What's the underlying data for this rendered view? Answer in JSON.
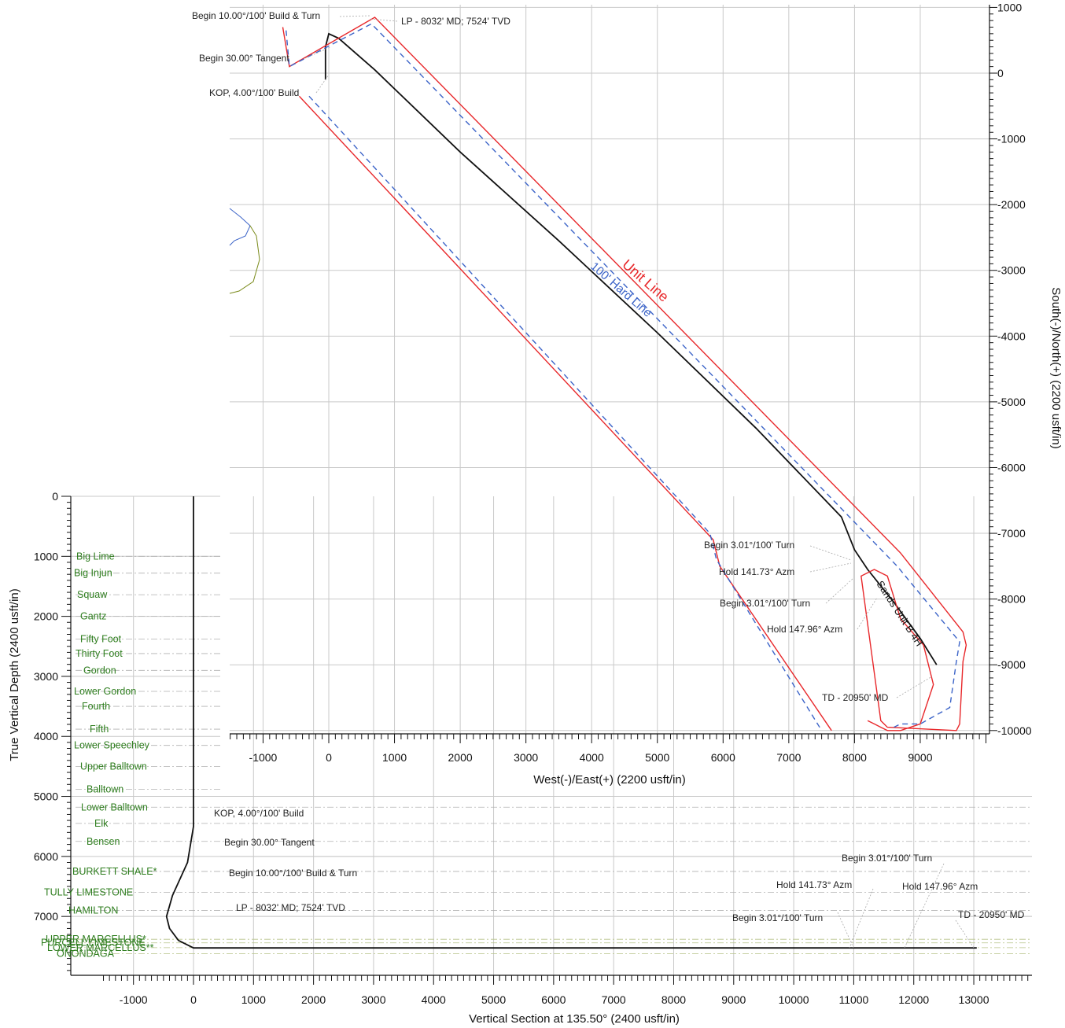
{
  "chart_data": [
    {
      "type": "line",
      "name": "plan-view",
      "xlabel": "West(-)/East(+) (2200 usft/in)",
      "ylabel": "South(-)/North(+) (2200 usft/in)",
      "xlim": [
        -1500,
        10000
      ],
      "ylim": [
        -10000,
        1000
      ],
      "x_ticks": [
        -1000,
        0,
        1000,
        2000,
        3000,
        4000,
        5000,
        6000,
        7000,
        8000,
        9000
      ],
      "y_ticks": [
        1000,
        0,
        -1000,
        -2000,
        -3000,
        -4000,
        -5000,
        -6000,
        -7000,
        -8000,
        -9000,
        -10000
      ],
      "grid": true,
      "series": [
        {
          "name": "Sands Unit B 4H",
          "color": "#111111",
          "x": [
            -50,
            -50,
            0,
            150,
            700,
            2000,
            3500,
            5000,
            6500,
            7800,
            8000,
            8200,
            8600,
            9000,
            9250
          ],
          "y": [
            -100,
            400,
            600,
            530,
            50,
            -1200,
            -2550,
            -3950,
            -5400,
            -6750,
            -7250,
            -7550,
            -8050,
            -8600,
            -9000
          ]
        },
        {
          "name": "Unit Line",
          "color": "#e8282b",
          "x": [
            -700,
            -600,
            700,
            8700,
            9650,
            9700,
            9650,
            9600,
            9550,
            8500,
            8400,
            8100,
            8300,
            8500,
            8700,
            9050,
            9200,
            9000,
            8700,
            8500,
            8400,
            8300,
            8200
          ],
          "y": [
            700,
            100,
            850,
            -7300,
            -8500,
            -8700,
            -8950,
            -9900,
            -10000,
            -9950,
            -9850,
            -7650,
            -7550,
            -7650,
            -8300,
            -8700,
            -9300,
            -9900,
            -10000,
            -10000,
            -9950,
            -9900,
            -9850
          ]
        },
        {
          "name": "Unit Line (lower)",
          "color": "#e8282b",
          "x": [
            -450,
            5850,
            5950,
            7650
          ],
          "y": [
            -350,
            -7100,
            -7500,
            -10000
          ]
        },
        {
          "name": "100' Hard Line",
          "color": "#3c64c8",
          "dashed": true,
          "x": [
            -650,
            -600,
            650,
            8650,
            9600,
            9550,
            9450,
            9000,
            8700,
            8600
          ],
          "y": [
            650,
            100,
            750,
            -7500,
            -8650,
            -8950,
            -9650,
            -9900,
            -9900,
            -9950
          ]
        },
        {
          "name": "100' Hard Line (lower)",
          "color": "#3c64c8",
          "dashed": true,
          "x": [
            -300,
            5800,
            5900,
            7500
          ],
          "y": [
            -350,
            -7000,
            -7400,
            -10000
          ]
        }
      ],
      "annotations": [
        {
          "text": "Begin 10.00°/100' Build & Turn"
        },
        {
          "text": "LP - 8032' MD; 7524' TVD"
        },
        {
          "text": "Begin 30.00° Tangent"
        },
        {
          "text": "KOP, 4.00°/100' Build"
        },
        {
          "text": "Unit Line",
          "color": "#e8282b"
        },
        {
          "text": "100' Hard Line",
          "color": "#3c64c8"
        },
        {
          "text": "Sands Unit B 4H"
        },
        {
          "text": "Begin 3.01°/100' Turn"
        },
        {
          "text": "Hold 141.73° Azm"
        },
        {
          "text": "Begin 3.01°/100' Turn"
        },
        {
          "text": "Hold 147.96° Azm"
        },
        {
          "text": "TD - 20950' MD"
        }
      ]
    },
    {
      "type": "line",
      "name": "vertical-section",
      "xlabel": "Vertical Section at 135.50° (2400 usft/in)",
      "ylabel": "True Vertical Depth (2400 usft/in)",
      "xlim": [
        -1500,
        14000
      ],
      "ylim": [
        7600,
        0
      ],
      "x_ticks": [
        -1000,
        0,
        1000,
        2000,
        3000,
        4000,
        5000,
        6000,
        7000,
        8000,
        9000,
        10000,
        11000,
        12000,
        13000
      ],
      "y_ticks": [
        0,
        1000,
        2000,
        3000,
        4000,
        5000,
        6000,
        7000
      ],
      "grid": true,
      "series": [
        {
          "name": "Wellpath",
          "color": "#111111",
          "x": [
            0,
            0,
            -100,
            -350,
            -450,
            -400,
            -250,
            0,
            13050
          ],
          "y": [
            0,
            5500,
            6100,
            6650,
            7000,
            7200,
            7400,
            7524,
            7524
          ]
        }
      ],
      "formations": [
        {
          "name": "Big Lime",
          "tvd": 1000
        },
        {
          "name": "Big Injun",
          "tvd": 1280
        },
        {
          "name": "Squaw",
          "tvd": 1640
        },
        {
          "name": "Gantz",
          "tvd": 2000
        },
        {
          "name": "Fifty Foot",
          "tvd": 2380
        },
        {
          "name": "Thirty Foot",
          "tvd": 2620
        },
        {
          "name": "Gordon",
          "tvd": 2900
        },
        {
          "name": "Lower Gordon",
          "tvd": 3250
        },
        {
          "name": "Fourth",
          "tvd": 3500
        },
        {
          "name": "Fifth",
          "tvd": 3880
        },
        {
          "name": "Lower Speechley",
          "tvd": 4150
        },
        {
          "name": "Upper Balltown",
          "tvd": 4500
        },
        {
          "name": "Balltown",
          "tvd": 4880
        },
        {
          "name": "Lower Balltown",
          "tvd": 5180
        },
        {
          "name": "Elk",
          "tvd": 5450
        },
        {
          "name": "Bensen",
          "tvd": 5750
        },
        {
          "name": "BURKETT SHALE*",
          "tvd": 6250
        },
        {
          "name": "TULLY LIMESTONE",
          "tvd": 6600
        },
        {
          "name": "HAMILTON",
          "tvd": 6900
        },
        {
          "name": "UPPER MARCELLUS*",
          "tvd": 7380
        },
        {
          "name": "PURCELL LIMESTONE",
          "tvd": 7440
        },
        {
          "name": "LOWER MARCELLUS**",
          "tvd": 7520
        },
        {
          "name": "ONONDAGA",
          "tvd": 7620
        }
      ],
      "annotations": [
        {
          "text": "KOP, 4.00°/100' Build"
        },
        {
          "text": "Begin 30.00° Tangent"
        },
        {
          "text": "Begin 10.00°/100' Build & Turn"
        },
        {
          "text": "LP - 8032' MD; 7524' TVD"
        },
        {
          "text": "Begin 3.01°/100' Turn"
        },
        {
          "text": "Hold 141.73° Azm"
        },
        {
          "text": "Hold 147.96° Azm"
        },
        {
          "text": "Begin 3.01°/100' Turn"
        },
        {
          "text": "TD - 20950' MD"
        }
      ]
    }
  ]
}
